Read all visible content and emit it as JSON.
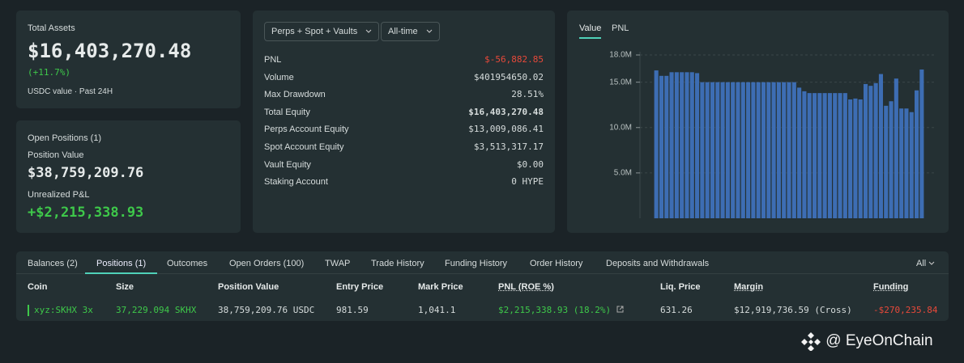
{
  "total_assets": {
    "label": "Total Assets",
    "value": "$16,403,270.48",
    "change": "(+11.7%)",
    "note": "USDC value · Past 24H"
  },
  "open_positions": {
    "title": "Open Positions (1)",
    "position_value_label": "Position Value",
    "position_value": "$38,759,209.76",
    "pnl_label": "Unrealized P&L",
    "pnl": "+$2,215,338.93"
  },
  "summary": {
    "filters": [
      "Perps + Spot + Vaults",
      "All-time"
    ],
    "rows": [
      [
        "PNL",
        "$-56,882.85"
      ],
      [
        "Volume",
        "$401954650.02"
      ],
      [
        "Max Drawdown",
        "28.51%"
      ],
      [
        "Total Equity",
        "$16,403,270.48"
      ],
      [
        "Perps Account Equity",
        "$13,009,086.41"
      ],
      [
        "Spot Account Equity",
        "$3,513,317.17"
      ],
      [
        "Vault Equity",
        "$0.00"
      ],
      [
        "Staking Account",
        "0 HYPE"
      ]
    ]
  },
  "chart_tabs": [
    "Value",
    "PNL"
  ],
  "chart_data": {
    "type": "bar",
    "color": "#3d6db3",
    "grid": true,
    "values": [
      16300000,
      15700000,
      15700000,
      16100000,
      16100000,
      16100000,
      16100000,
      16100000,
      16000000,
      15000000,
      15000000,
      15000000,
      15000000,
      15000000,
      15000000,
      15000000,
      15000000,
      15000000,
      15000000,
      15000000,
      15000000,
      15000000,
      15000000,
      15000000,
      15000000,
      15000000,
      15000000,
      15000000,
      14400000,
      14000000,
      13800000,
      13800000,
      13800000,
      13800000,
      13800000,
      13800000,
      13800000,
      13800000,
      13100000,
      13200000,
      13100000,
      14800000,
      14600000,
      14900000,
      15900000,
      12400000,
      12900000,
      15400000,
      12100000,
      12100000,
      11700000,
      14100000,
      16400000
    ],
    "ylim": [
      0,
      18000000
    ],
    "yticks": [
      {
        "value": 5000000,
        "label": "5.0M"
      },
      {
        "value": 10000000,
        "label": "10.0M"
      },
      {
        "value": 15000000,
        "label": "15.0M"
      },
      {
        "value": 18000000,
        "label": "18.0M"
      }
    ]
  },
  "tabs": [
    "Balances (2)",
    "Positions (1)",
    "Outcomes",
    "Open Orders (100)",
    "TWAP",
    "Trade History",
    "Funding History",
    "Order History",
    "Deposits and Withdrawals"
  ],
  "tab_filter": "All",
  "table": {
    "headers": [
      "Coin",
      "Size",
      "Position Value",
      "Entry Price",
      "Mark Price",
      "PNL (ROE %)",
      "Liq. Price",
      "Margin",
      "Funding"
    ],
    "rows": [
      [
        "xyz:SKHX 3x",
        "37,229.094 SKHX",
        "38,759,209.76 USDC",
        "981.59",
        "1,041.1",
        "$2,215,338.93 (18.2%)",
        "631.26",
        "$12,919,736.59 (Cross)",
        "-$270,235.84"
      ]
    ]
  },
  "watermark": "@ EyeOnChain"
}
